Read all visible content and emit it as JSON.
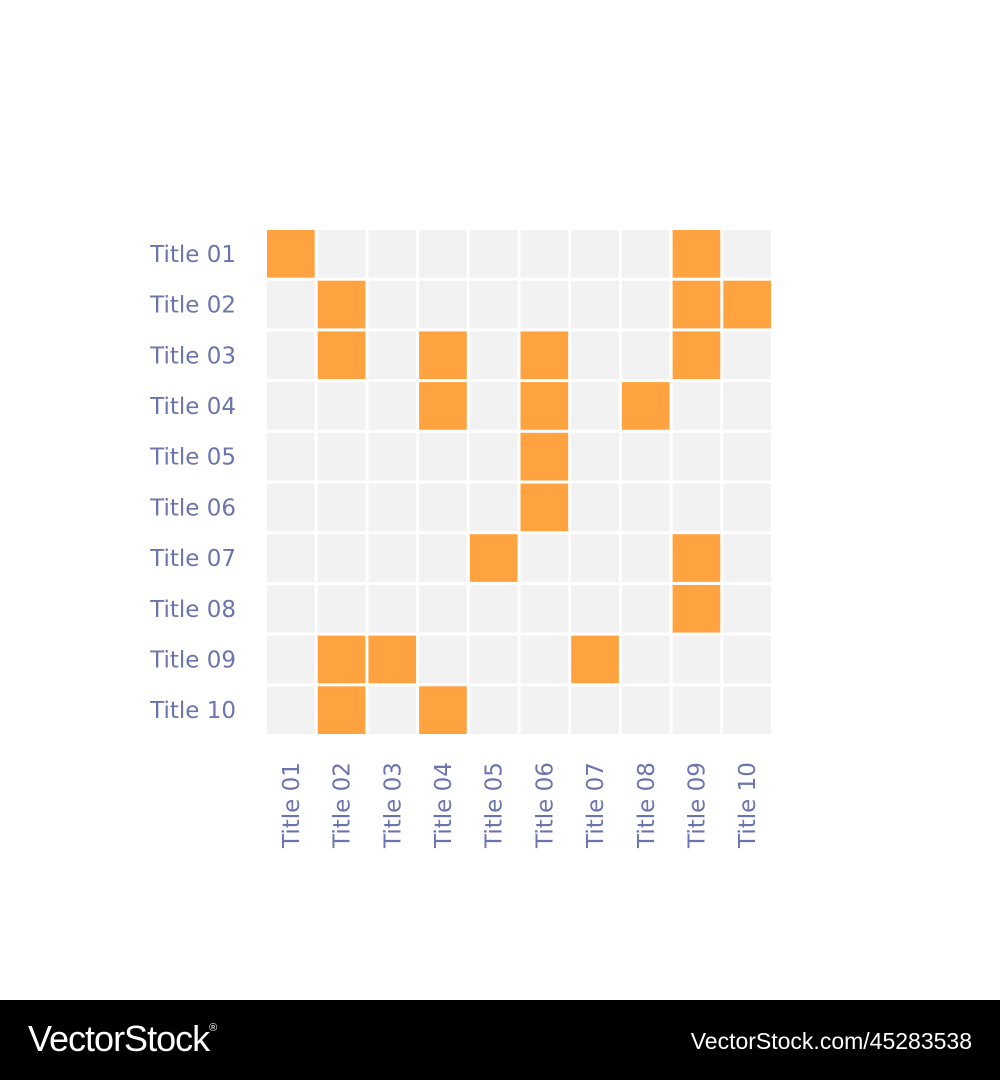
{
  "chart_data": {
    "type": "heatmap",
    "rows": [
      "Title 01",
      "Title 02",
      "Title 03",
      "Title 04",
      "Title 05",
      "Title 06",
      "Title 07",
      "Title 08",
      "Title 09",
      "Title 10"
    ],
    "columns": [
      "Title 01",
      "Title 02",
      "Title 03",
      "Title 04",
      "Title 05",
      "Title 06",
      "Title 07",
      "Title 08",
      "Title 09",
      "Title 10"
    ],
    "matrix": [
      [
        1,
        0,
        0,
        0,
        0,
        0,
        0,
        0,
        1,
        0
      ],
      [
        0,
        1,
        0,
        0,
        0,
        0,
        0,
        0,
        1,
        1
      ],
      [
        0,
        1,
        0,
        1,
        0,
        1,
        0,
        0,
        1,
        0
      ],
      [
        0,
        0,
        0,
        1,
        0,
        1,
        0,
        1,
        0,
        0
      ],
      [
        0,
        0,
        0,
        0,
        0,
        1,
        0,
        0,
        0,
        0
      ],
      [
        0,
        0,
        0,
        0,
        0,
        1,
        0,
        0,
        0,
        0
      ],
      [
        0,
        0,
        0,
        0,
        1,
        0,
        0,
        0,
        1,
        0
      ],
      [
        0,
        0,
        0,
        0,
        0,
        0,
        0,
        0,
        1,
        0
      ],
      [
        0,
        1,
        1,
        0,
        0,
        0,
        1,
        0,
        0,
        0
      ],
      [
        0,
        1,
        0,
        1,
        0,
        0,
        0,
        0,
        0,
        0
      ]
    ],
    "legend": "none",
    "colors": {
      "filled": "#FFA340",
      "empty": "#F2F2F2",
      "label": "#6C74AE"
    }
  },
  "footer": {
    "brand": "VectorStock",
    "brand_mark": "®",
    "url": "VectorStock.com/45283538"
  }
}
